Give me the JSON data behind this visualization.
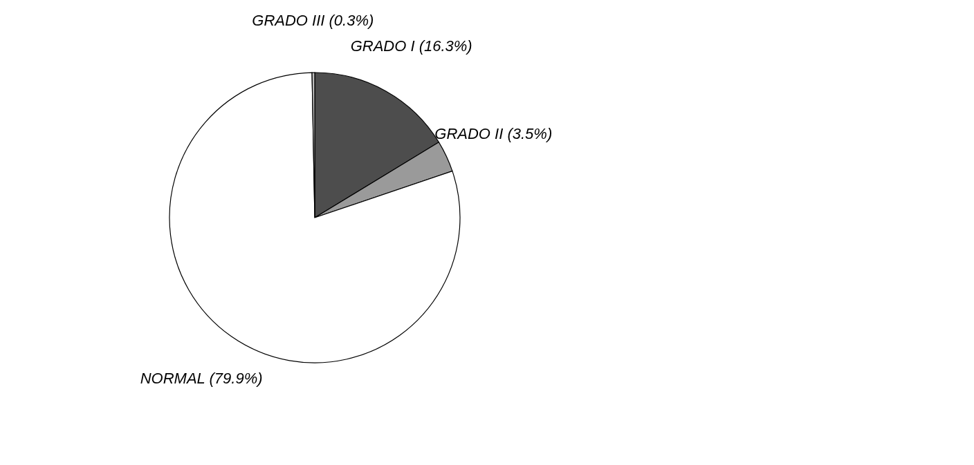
{
  "chart_data": {
    "type": "pie",
    "categories": [
      "GRADO I (16.3%)",
      "GRADO II (3.5%)",
      "NORMAL (79.9%)",
      "GRADO III (0.3%)"
    ],
    "values": [
      16.3,
      3.5,
      79.9,
      0.3
    ],
    "colors": [
      "#4d4d4d",
      "#9a9a9a",
      "#ffffff",
      "#bdbdbd"
    ],
    "legend": false
  }
}
